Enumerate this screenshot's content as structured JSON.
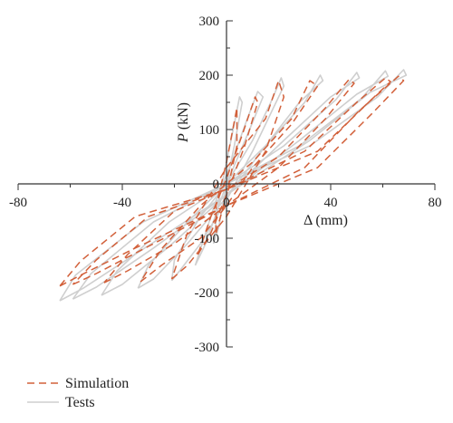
{
  "chart_data": {
    "type": "line",
    "title": "",
    "xlabel": "Δ (mm)",
    "ylabel_italic": "P",
    "ylabel_unit": " (kN)",
    "xlim": [
      -80,
      80
    ],
    "ylim": [
      -300,
      300
    ],
    "xticks": [
      -80,
      -40,
      0,
      40,
      80
    ],
    "xtick_labels": [
      "-80",
      "-40",
      "0",
      "40",
      "80"
    ],
    "yticks": [
      -300,
      -200,
      -100,
      0,
      100,
      200,
      300
    ],
    "ytick_labels": [
      "-300",
      "-200",
      "-100",
      "0",
      "100",
      "200",
      "300"
    ],
    "grid": false,
    "legend_position": "bottom-left",
    "series": [
      {
        "name": "Tests",
        "style": "solid",
        "color": "#cfcfcf",
        "loops": [
          {
            "x": [
              -5,
              -3,
              0,
              3,
              6,
              5,
              3,
              0,
              -3,
              -5
            ],
            "y": [
              -110,
              -80,
              0,
              70,
              150,
              160,
              110,
              40,
              -30,
              -110
            ]
          },
          {
            "x": [
              -12,
              -8,
              0,
              8,
              14,
              12,
              8,
              2,
              -4,
              -12
            ],
            "y": [
              -150,
              -110,
              0,
              90,
              160,
              170,
              120,
              40,
              -30,
              -150
            ]
          },
          {
            "x": [
              -21,
              -18,
              -10,
              0,
              10,
              18,
              22,
              21,
              17,
              10,
              0,
              -10,
              -20,
              -21
            ],
            "y": [
              -178,
              -160,
              -110,
              -30,
              60,
              140,
              180,
              195,
              150,
              80,
              0,
              -60,
              -140,
              -178
            ]
          },
          {
            "x": [
              -34,
              -28,
              -15,
              0,
              15,
              28,
              37,
              36,
              30,
              15,
              0,
              -15,
              -30,
              -34
            ],
            "y": [
              -192,
              -175,
              -110,
              -25,
              70,
              150,
              190,
              200,
              150,
              70,
              0,
              -70,
              -150,
              -192
            ]
          },
          {
            "x": [
              -48,
              -40,
              -22,
              0,
              22,
              40,
              51,
              50,
              42,
              22,
              0,
              -22,
              -42,
              -48
            ],
            "y": [
              -205,
              -185,
              -115,
              -20,
              80,
              160,
              195,
              205,
              155,
              70,
              0,
              -70,
              -160,
              -205
            ]
          },
          {
            "x": [
              -59,
              -50,
              -28,
              0,
              28,
              50,
              62,
              61,
              52,
              28,
              0,
              -28,
              -52,
              -59
            ],
            "y": [
              -212,
              -190,
              -118,
              -20,
              80,
              165,
              198,
              208,
              158,
              70,
              0,
              -70,
              -165,
              -212
            ]
          },
          {
            "x": [
              -64,
              -55,
              -32,
              0,
              32,
              55,
              69,
              68,
              58,
              32,
              0,
              -32,
              -58,
              -64
            ],
            "y": [
              -215,
              -192,
              -120,
              -20,
              80,
              168,
              200,
              210,
              160,
              70,
              0,
              -70,
              -168,
              -215
            ]
          }
        ]
      },
      {
        "name": "Simulation",
        "style": "dashed",
        "color": "#d2603a",
        "loops": [
          {
            "x": [
              -4,
              0,
              4,
              4,
              0,
              -4,
              -4
            ],
            "y": [
              -90,
              -20,
              70,
              140,
              40,
              -40,
              -90
            ]
          },
          {
            "x": [
              -11,
              -6,
              0,
              7,
              12,
              11,
              6,
              0,
              -6,
              -11
            ],
            "y": [
              -130,
              -90,
              -20,
              70,
              150,
              160,
              90,
              10,
              -60,
              -130
            ]
          },
          {
            "x": [
              -21,
              -15,
              0,
              15,
              22,
              20,
              15,
              0,
              -15,
              -21
            ],
            "y": [
              -175,
              -150,
              -60,
              60,
              160,
              190,
              120,
              30,
              -90,
              -175
            ]
          },
          {
            "x": [
              -33,
              -25,
              -10,
              0,
              10,
              25,
              35,
              32,
              25,
              10,
              0,
              -10,
              -25,
              -33
            ],
            "y": [
              -180,
              -150,
              -100,
              -40,
              30,
              110,
              180,
              190,
              120,
              40,
              0,
              -40,
              -120,
              -180
            ]
          },
          {
            "x": [
              -47,
              -38,
              -20,
              0,
              20,
              38,
              49,
              47,
              38,
              20,
              0,
              -20,
              -38,
              -47
            ],
            "y": [
              -182,
              -160,
              -110,
              -40,
              30,
              120,
              185,
              192,
              140,
              50,
              -10,
              -50,
              -130,
              -182
            ]
          },
          {
            "x": [
              -59,
              -50,
              -30,
              0,
              30,
              50,
              63,
              61,
              50,
              30,
              0,
              -30,
              -50,
              -59
            ],
            "y": [
              -185,
              -165,
              -115,
              -40,
              30,
              130,
              188,
              195,
              150,
              60,
              -10,
              -60,
              -140,
              -185
            ]
          },
          {
            "x": [
              -64,
              -56,
              -35,
              0,
              35,
              56,
              68,
              66,
              55,
              35,
              0,
              -35,
              -56,
              -64
            ],
            "y": [
              -188,
              -168,
              -118,
              -40,
              30,
              130,
              190,
              198,
              152,
              60,
              -10,
              -60,
              -142,
              -188
            ]
          }
        ]
      }
    ],
    "legend": [
      {
        "label": "Simulation",
        "style": "dashed",
        "color": "#d2603a"
      },
      {
        "label": "Tests",
        "style": "solid",
        "color": "#cfcfcf"
      }
    ]
  }
}
